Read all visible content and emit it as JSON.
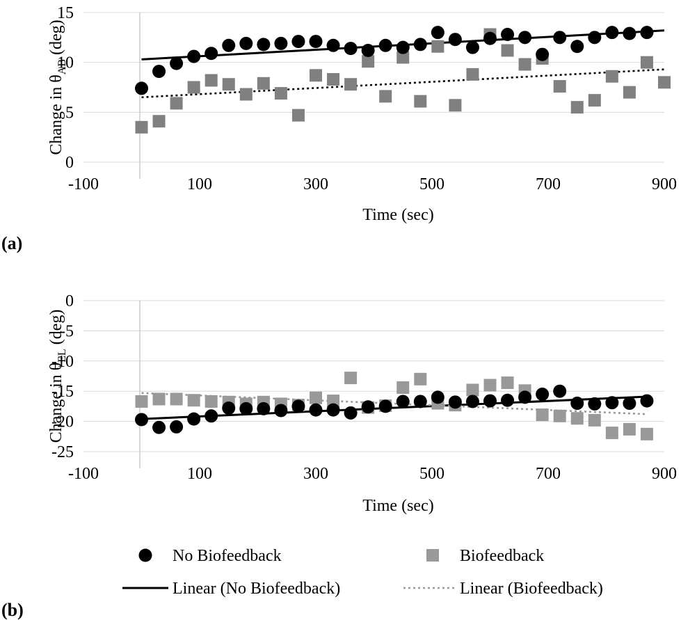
{
  "chart_data": [
    {
      "type": "scatter",
      "panel_label": "(a)",
      "xlabel": "Time (sec)",
      "ylabel": {
        "prefix": "Change in θ",
        "subscript": "AB",
        "suffix": " (deg)"
      },
      "xlim": [
        -100,
        900
      ],
      "ylim": [
        0,
        15
      ],
      "xticks": [
        "-100",
        "100",
        "300",
        "500",
        "700",
        "900"
      ],
      "yticks": [
        "0",
        "5",
        "10",
        "15"
      ],
      "grid": "horizontal",
      "series": [
        {
          "name": "No Biofeedback",
          "marker": "circle",
          "color": "#000000",
          "x": [
            0,
            30,
            60,
            90,
            120,
            150,
            180,
            210,
            240,
            270,
            300,
            330,
            360,
            390,
            420,
            450,
            480,
            510,
            540,
            570,
            600,
            630,
            660,
            690,
            720,
            750,
            780,
            810,
            840,
            870
          ],
          "y": [
            7.4,
            9.1,
            9.9,
            10.6,
            10.9,
            11.7,
            11.9,
            11.8,
            11.9,
            12.1,
            12.1,
            11.7,
            11.4,
            11.2,
            11.7,
            11.5,
            11.8,
            13.0,
            12.3,
            11.5,
            12.4,
            12.8,
            12.5,
            10.8,
            12.5,
            11.6,
            12.5,
            13.0,
            12.9,
            13.0
          ]
        },
        {
          "name": "Biofeedback",
          "marker": "square",
          "color": "#808080",
          "x": [
            0,
            30,
            60,
            90,
            120,
            150,
            180,
            210,
            240,
            270,
            300,
            330,
            360,
            390,
            420,
            450,
            480,
            510,
            540,
            570,
            600,
            630,
            660,
            690,
            720,
            750,
            780,
            810,
            840,
            870,
            900
          ],
          "y": [
            3.5,
            4.1,
            5.9,
            7.5,
            8.2,
            7.8,
            6.8,
            7.9,
            6.9,
            4.7,
            8.7,
            8.3,
            7.8,
            10.1,
            6.6,
            10.5,
            6.1,
            11.6,
            5.7,
            8.8,
            12.8,
            11.2,
            9.8,
            10.4,
            7.6,
            5.5,
            6.2,
            8.6,
            7.0,
            10.0,
            8.0
          ]
        },
        {
          "name": "Linear (No Biofeedback)",
          "type": "trendline",
          "style": "solid",
          "color": "#000000",
          "x": [
            0,
            900
          ],
          "y": [
            10.3,
            13.2
          ]
        },
        {
          "name": "Linear (Biofeedback)",
          "type": "trendline",
          "style": "dotted",
          "color": "#000000",
          "x": [
            0,
            900
          ],
          "y": [
            6.5,
            9.3
          ]
        }
      ]
    },
    {
      "type": "scatter",
      "panel_label": "(b)",
      "xlabel": "Time (sec)",
      "ylabel": {
        "prefix": "Change in θ",
        "subscript": "EL",
        "suffix": " (deg)"
      },
      "xlim": [
        -100,
        900
      ],
      "ylim": [
        -25,
        0
      ],
      "xticks": [
        "-100",
        "100",
        "300",
        "500",
        "700",
        "900"
      ],
      "yticks": [
        "0",
        "-5",
        "-10",
        "-15",
        "-20",
        "-25"
      ],
      "grid": "horizontal",
      "series": [
        {
          "name": "No Biofeedback",
          "marker": "circle",
          "color": "#000000",
          "x": [
            0,
            30,
            60,
            90,
            120,
            150,
            180,
            210,
            240,
            270,
            300,
            330,
            360,
            390,
            420,
            450,
            480,
            510,
            540,
            570,
            600,
            630,
            660,
            690,
            720,
            750,
            780,
            810,
            840,
            870
          ],
          "y": [
            -19.7,
            -21.0,
            -20.9,
            -19.6,
            -19.1,
            -17.8,
            -17.9,
            -17.9,
            -18.2,
            -17.5,
            -18.1,
            -18.1,
            -18.6,
            -17.6,
            -17.5,
            -16.7,
            -16.7,
            -16.0,
            -16.8,
            -16.7,
            -16.6,
            -16.5,
            -16.0,
            -15.5,
            -15.0,
            -17.0,
            -17.1,
            -16.9,
            -17.0,
            -16.6
          ]
        },
        {
          "name": "Biofeedback",
          "marker": "square",
          "color": "#999999",
          "x": [
            0,
            30,
            60,
            90,
            120,
            150,
            180,
            210,
            240,
            270,
            300,
            330,
            360,
            390,
            420,
            450,
            480,
            510,
            540,
            570,
            600,
            630,
            660,
            690,
            720,
            750,
            780,
            810,
            840,
            870
          ],
          "y": [
            -16.7,
            -16.3,
            -16.3,
            -16.5,
            -16.7,
            -16.8,
            -17.1,
            -16.8,
            -17.1,
            -17.3,
            -16.1,
            -16.6,
            -12.8,
            -17.7,
            -17.4,
            -14.4,
            -13.0,
            -17.0,
            -17.3,
            -14.8,
            -14.0,
            -13.6,
            -14.9,
            -18.9,
            -19.1,
            -19.5,
            -19.8,
            -21.9,
            -21.3,
            -22.1
          ]
        },
        {
          "name": "Linear (No Biofeedback)",
          "type": "trendline",
          "style": "solid",
          "color": "#000000",
          "x": [
            0,
            870
          ],
          "y": [
            -19.6,
            -15.9
          ]
        },
        {
          "name": "Linear (Biofeedback)",
          "type": "trendline",
          "style": "dotted",
          "color": "#999999",
          "x": [
            0,
            870
          ],
          "y": [
            -15.3,
            -18.8
          ]
        }
      ]
    }
  ],
  "legend": {
    "items": [
      {
        "label": "No Biofeedback",
        "kind": "circle",
        "color": "#000000"
      },
      {
        "label": "Biofeedback",
        "kind": "square",
        "color": "#999999"
      },
      {
        "label": "Linear (No Biofeedback)",
        "kind": "solid-line",
        "color": "#000000"
      },
      {
        "label": "Linear (Biofeedback)",
        "kind": "dotted-line",
        "color": "#999999"
      }
    ]
  }
}
